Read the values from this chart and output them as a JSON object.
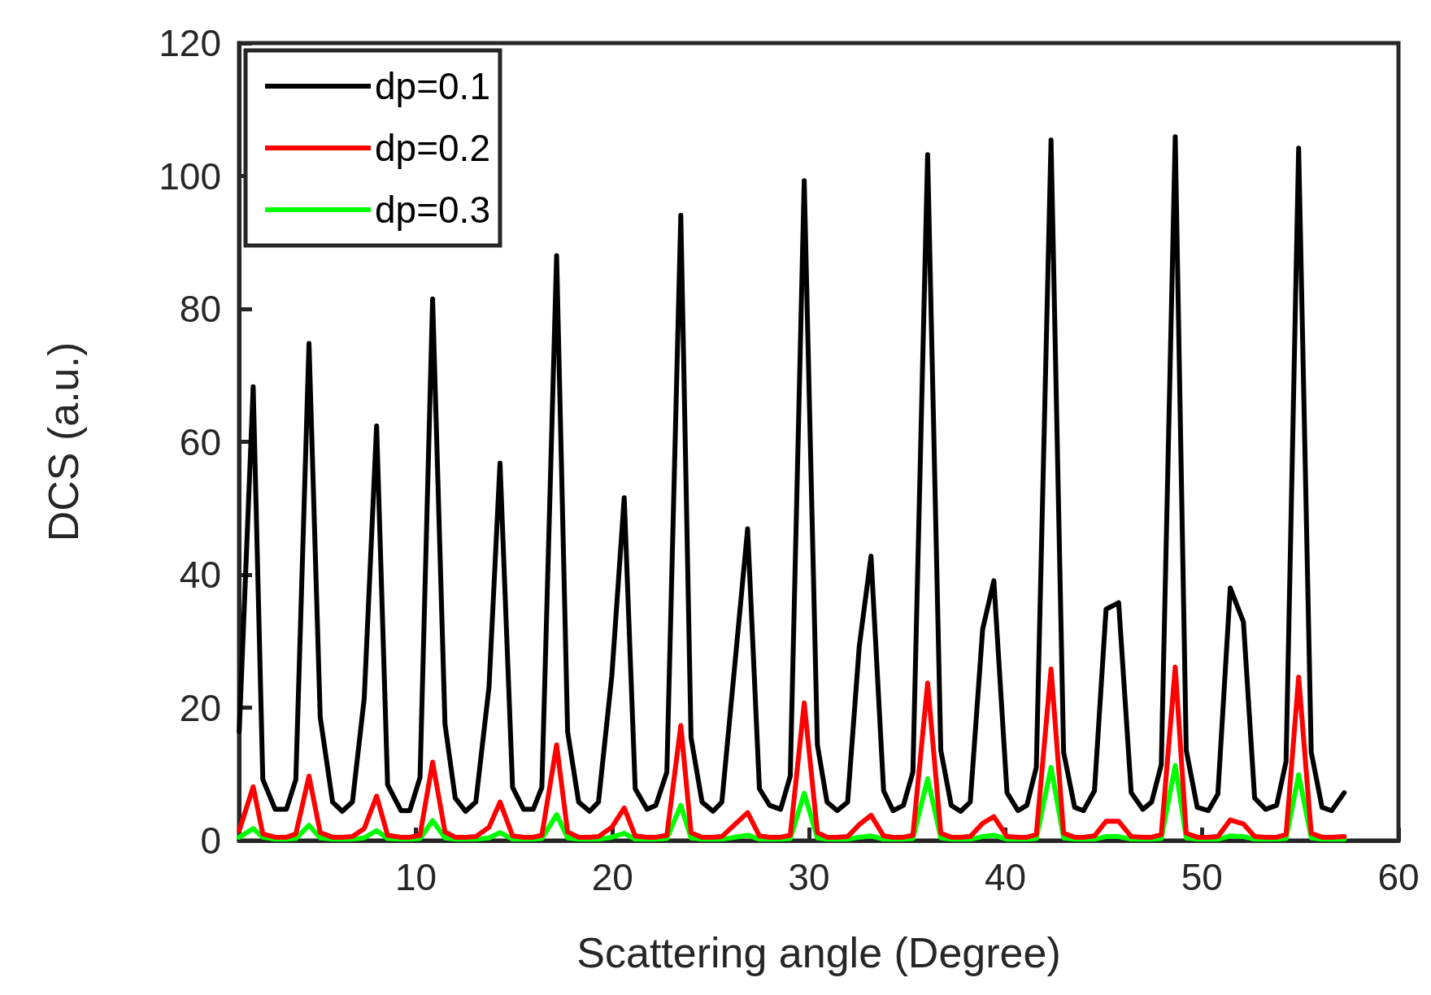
{
  "chart_data": {
    "type": "line",
    "xlabel": "Scattering angle (Degree)",
    "ylabel": "DCS (a.u.)",
    "x": [
      1.01,
      1.72,
      2.21,
      2.84,
      3.41,
      3.89,
      4.56,
      5.13,
      5.76,
      6.25,
      6.77,
      7.37,
      8.0,
      8.56,
      9.24,
      9.69,
      10.21,
      10.85,
      11.48,
      12.0,
      12.53,
      13.05,
      13.72,
      14.28,
      14.92,
      15.48,
      15.97,
      16.41,
      17.16,
      17.72,
      18.28,
      18.84,
      19.29,
      19.97,
      20.6,
      21.16,
      21.76,
      22.21,
      22.77,
      23.48,
      24.0,
      24.56,
      25.12,
      25.57,
      26.88,
      27.48,
      28.0,
      28.56,
      29.05,
      29.76,
      30.43,
      30.92,
      31.44,
      31.97,
      32.56,
      33.16,
      33.8,
      34.28,
      34.81,
      35.29,
      36.04,
      36.71,
      37.24,
      37.72,
      38.21,
      38.84,
      39.41,
      40.08,
      40.64,
      41.09,
      41.57,
      42.32,
      42.96,
      43.52,
      43.97,
      44.53,
      45.12,
      45.76,
      46.4,
      46.99,
      47.44,
      47.93,
      48.64,
      49.2,
      49.76,
      50.32,
      50.81,
      51.44,
      52.11,
      52.68,
      53.24,
      53.8,
      54.28,
      54.92,
      55.56,
      56.11,
      56.6,
      57.24
    ],
    "series": [
      {
        "name": "dp=0.1",
        "color": "#000000",
        "values": [
          16.4,
          68.3,
          9.2,
          4.7,
          4.7,
          9.2,
          74.8,
          18.6,
          5.8,
          4.4,
          5.8,
          21.4,
          62.4,
          8.4,
          4.5,
          4.5,
          9.5,
          81.5,
          17.5,
          6.4,
          4.4,
          5.8,
          23.1,
          56.8,
          8.0,
          4.7,
          4.7,
          8.0,
          88.0,
          16.4,
          5.8,
          4.4,
          5.8,
          24.8,
          51.6,
          7.8,
          4.7,
          5.3,
          10.3,
          94.1,
          15.5,
          5.8,
          4.4,
          5.8,
          46.9,
          7.8,
          5.3,
          4.7,
          9.7,
          99.3,
          14.4,
          5.8,
          4.5,
          5.8,
          29.2,
          42.8,
          7.5,
          4.5,
          5.3,
          10.3,
          103.2,
          13.6,
          5.3,
          4.4,
          5.8,
          31.8,
          39.1,
          7.2,
          4.5,
          5.3,
          11.0,
          105.4,
          13.3,
          5.0,
          4.5,
          7.5,
          34.8,
          35.8,
          7.2,
          4.7,
          5.8,
          11.4,
          105.9,
          13.6,
          5.0,
          4.5,
          7.0,
          38.0,
          32.9,
          6.4,
          4.7,
          5.3,
          11.9,
          104.2,
          13.3,
          5.0,
          4.5,
          7.2
        ]
      },
      {
        "name": "dp=0.2",
        "color": "#ff0000",
        "values": [
          1.5,
          8.1,
          1.0,
          0.5,
          0.5,
          1.0,
          9.7,
          1.2,
          0.5,
          0.5,
          0.6,
          1.8,
          6.7,
          0.8,
          0.5,
          0.5,
          0.8,
          11.8,
          1.3,
          0.5,
          0.5,
          0.6,
          2.0,
          5.8,
          0.7,
          0.5,
          0.5,
          0.8,
          14.4,
          1.3,
          0.5,
          0.5,
          0.6,
          2.0,
          4.9,
          0.7,
          0.5,
          0.5,
          0.8,
          17.3,
          1.2,
          0.5,
          0.5,
          0.6,
          4.2,
          0.7,
          0.5,
          0.5,
          0.8,
          20.7,
          1.2,
          0.5,
          0.5,
          0.6,
          2.4,
          3.8,
          0.7,
          0.5,
          0.5,
          0.8,
          23.7,
          1.1,
          0.5,
          0.5,
          0.6,
          2.6,
          3.6,
          0.6,
          0.5,
          0.5,
          0.9,
          25.8,
          1.1,
          0.5,
          0.5,
          0.7,
          2.9,
          2.9,
          0.6,
          0.5,
          0.5,
          0.9,
          26.1,
          1.1,
          0.5,
          0.5,
          0.6,
          3.1,
          2.5,
          0.6,
          0.5,
          0.5,
          0.9,
          24.6,
          1.1,
          0.5,
          0.5,
          0.6
        ]
      },
      {
        "name": "dp=0.3",
        "color": "#00ff00",
        "values": [
          0.5,
          1.8,
          0.5,
          0.2,
          0.2,
          0.3,
          2.3,
          0.4,
          0.2,
          0.2,
          0.2,
          0.4,
          1.5,
          0.3,
          0.2,
          0.2,
          0.3,
          3.0,
          0.4,
          0.2,
          0.2,
          0.2,
          0.4,
          1.2,
          0.2,
          0.2,
          0.2,
          0.3,
          3.9,
          0.4,
          0.2,
          0.2,
          0.2,
          0.5,
          1.1,
          0.2,
          0.2,
          0.2,
          0.3,
          5.3,
          0.4,
          0.2,
          0.2,
          0.2,
          0.8,
          0.2,
          0.2,
          0.2,
          0.3,
          7.1,
          0.4,
          0.2,
          0.2,
          0.2,
          0.5,
          0.7,
          0.2,
          0.2,
          0.2,
          0.3,
          9.3,
          0.4,
          0.2,
          0.2,
          0.2,
          0.6,
          0.8,
          0.2,
          0.2,
          0.2,
          0.3,
          11.0,
          0.4,
          0.2,
          0.2,
          0.2,
          0.6,
          0.6,
          0.2,
          0.2,
          0.2,
          0.3,
          11.3,
          0.4,
          0.2,
          0.2,
          0.2,
          0.7,
          0.6,
          0.2,
          0.2,
          0.2,
          0.3,
          9.9,
          0.4,
          0.2,
          0.2,
          0.2
        ]
      }
    ],
    "xlim": [
      1,
      60
    ],
    "xticks": [
      10,
      20,
      30,
      40,
      50,
      60
    ],
    "ylim": [
      0,
      120
    ],
    "yticks": [
      0,
      20,
      40,
      60,
      80,
      100,
      120
    ],
    "grid": false,
    "legend": "top left",
    "marker": "none",
    "line_style": "solid"
  }
}
